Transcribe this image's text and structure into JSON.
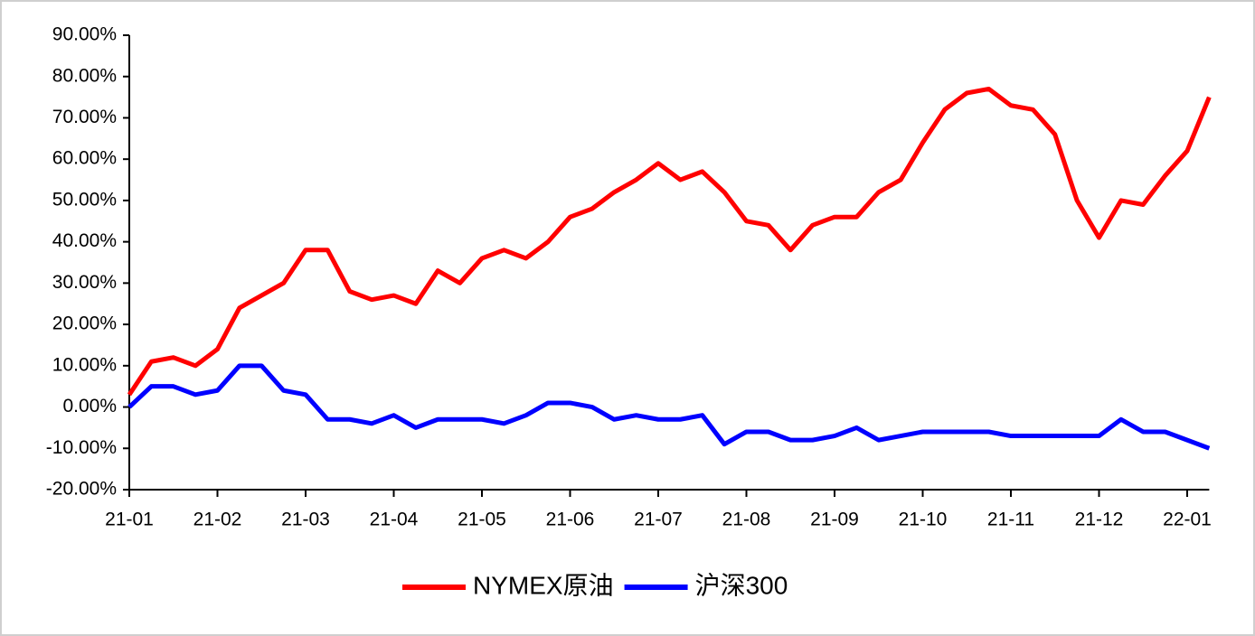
{
  "chart_data": {
    "type": "line",
    "categories": [
      "21-01",
      null,
      null,
      null,
      "21-02",
      null,
      null,
      null,
      "21-03",
      null,
      null,
      null,
      "21-04",
      null,
      null,
      null,
      "21-05",
      null,
      null,
      null,
      "21-06",
      null,
      null,
      null,
      "21-07",
      null,
      null,
      null,
      "21-08",
      null,
      null,
      null,
      "21-09",
      null,
      null,
      null,
      "21-10",
      null,
      null,
      null,
      "21-11",
      null,
      null,
      null,
      "21-12",
      null,
      null,
      null,
      "22-01",
      null
    ],
    "series": [
      {
        "name": "NYMEX原油",
        "color": "#ff0000",
        "values": [
          3,
          11,
          12,
          10,
          14,
          24,
          27,
          30,
          38,
          38,
          28,
          26,
          27,
          25,
          33,
          30,
          36,
          38,
          36,
          40,
          46,
          48,
          52,
          55,
          59,
          55,
          57,
          52,
          45,
          44,
          38,
          44,
          46,
          46,
          52,
          55,
          64,
          72,
          76,
          77,
          73,
          72,
          66,
          50,
          41,
          50,
          49,
          56,
          62,
          75
        ]
      },
      {
        "name": "沪深300",
        "color": "#0000ff",
        "values": [
          0,
          5,
          5,
          3,
          4,
          10,
          10,
          4,
          3,
          -3,
          -3,
          -4,
          -2,
          -5,
          -3,
          -3,
          -3,
          -4,
          -2,
          1,
          1,
          0,
          -3,
          -2,
          -3,
          -3,
          -2,
          -9,
          -6,
          -6,
          -8,
          -8,
          -7,
          -5,
          -8,
          -7,
          -6,
          -6,
          -6,
          -6,
          -7,
          -7,
          -7,
          -7,
          -7,
          -3,
          -6,
          -6,
          -8,
          -10
        ]
      }
    ],
    "ylim": [
      -20,
      90
    ],
    "yticks": [
      {
        "value": -20,
        "label": "-20.00%"
      },
      {
        "value": -10,
        "label": "-10.00%"
      },
      {
        "value": 0,
        "label": "0.00%"
      },
      {
        "value": 10,
        "label": "10.00%"
      },
      {
        "value": 20,
        "label": "20.00%"
      },
      {
        "value": 30,
        "label": "30.00%"
      },
      {
        "value": 40,
        "label": "40.00%"
      },
      {
        "value": 50,
        "label": "50.00%"
      },
      {
        "value": 60,
        "label": "60.00%"
      },
      {
        "value": 70,
        "label": "70.00%"
      },
      {
        "value": 80,
        "label": "80.00%"
      },
      {
        "value": 90,
        "label": "90.00%"
      }
    ],
    "legend": "bottom"
  }
}
